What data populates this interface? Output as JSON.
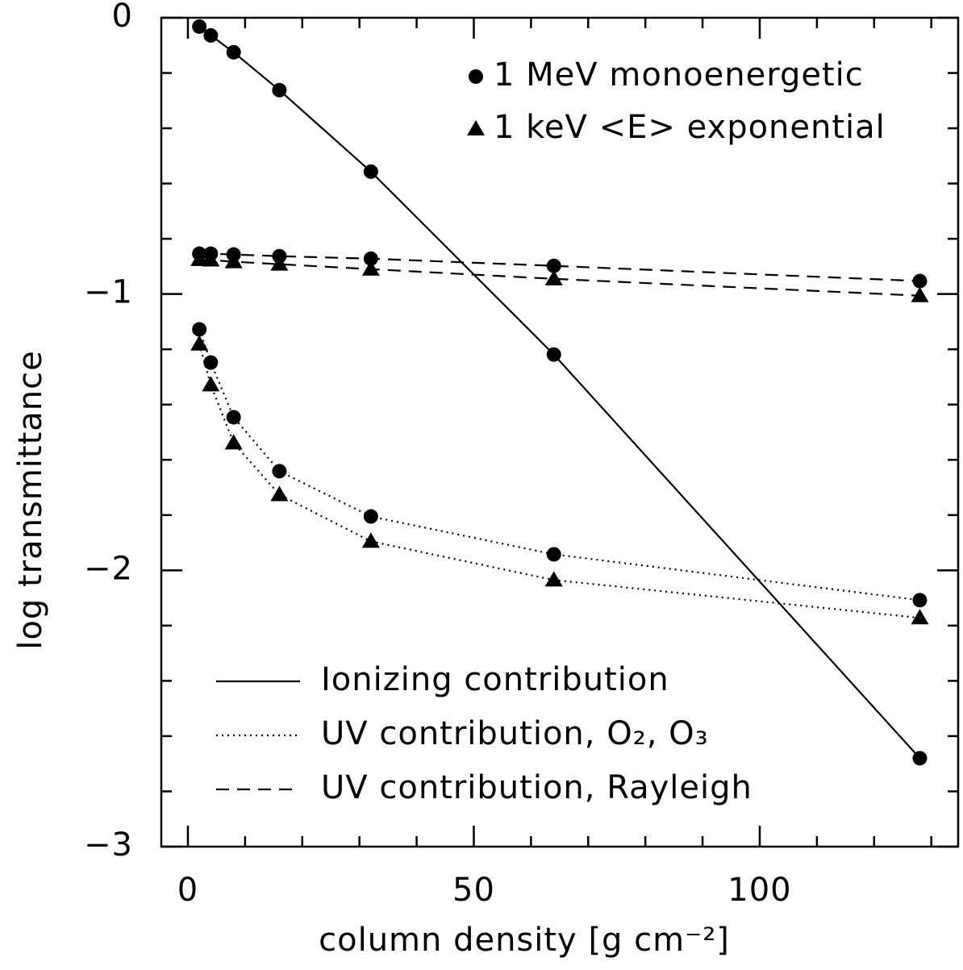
{
  "chart_data": {
    "type": "line",
    "xlabel": "column density [g cm⁻²]",
    "ylabel": "log transmittance",
    "xlim": [
      -4.65,
      134.7
    ],
    "ylim": [
      -3,
      0
    ],
    "xticks": [
      0,
      50,
      100
    ],
    "xticks_minor": [
      10,
      20,
      30,
      40,
      60,
      70,
      80,
      90,
      110,
      120,
      130
    ],
    "yticks": [
      {
        "value": -3,
        "label": "−3"
      },
      {
        "value": -2,
        "label": "−2"
      },
      {
        "value": -1,
        "label": "−1"
      },
      0
    ],
    "yticks_minor": [
      -2.8,
      -2.6,
      -2.4,
      -2.2,
      -1.8,
      -1.6,
      -1.4,
      -1.2,
      -0.8,
      -0.6,
      -0.4,
      -0.2
    ],
    "x": [
      2,
      4,
      8,
      16,
      32,
      64,
      128
    ],
    "series": [
      {
        "marker": "circle",
        "linestyle": "solid",
        "color": "#000000",
        "values": [
          -0.032,
          -0.064,
          -0.125,
          -0.262,
          -0.557,
          -1.219,
          -2.68
        ]
      },
      {
        "marker": "circle",
        "linestyle": "dashed",
        "color": "#000000",
        "values": [
          -0.854,
          -0.854,
          -0.857,
          -0.863,
          -0.872,
          -0.898,
          -0.953
        ]
      },
      {
        "marker": "triangle",
        "linestyle": "dashed",
        "color": "#000000",
        "values": [
          -0.875,
          -0.877,
          -0.883,
          -0.892,
          -0.91,
          -0.945,
          -1.006
        ]
      },
      {
        "marker": "circle",
        "linestyle": "dotted",
        "color": "#000000",
        "values": [
          -1.128,
          -1.248,
          -1.446,
          -1.641,
          -1.805,
          -1.942,
          -2.108
        ]
      },
      {
        "marker": "triangle",
        "linestyle": "dotted",
        "color": "#000000",
        "values": [
          -1.181,
          -1.329,
          -1.539,
          -1.726,
          -1.895,
          -2.035,
          -2.172
        ]
      }
    ],
    "marker_legend": [
      {
        "label": "1 MeV monoenergetic",
        "marker": "circle"
      },
      {
        "label": "1 keV <E> exponential",
        "marker": "triangle"
      }
    ],
    "line_legend": [
      {
        "label": "Ionizing contribution",
        "linestyle": "solid"
      },
      {
        "label": "UV contribution, O₂, O₃",
        "linestyle": "dotted"
      },
      {
        "label": "UV contribution, Rayleigh",
        "linestyle": "dashed"
      }
    ]
  }
}
